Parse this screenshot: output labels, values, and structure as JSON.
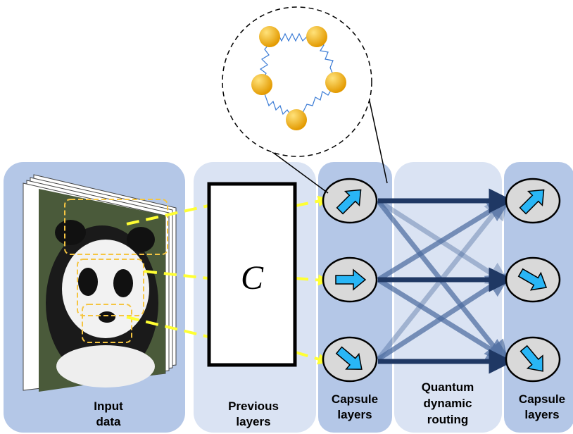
{
  "panels": [
    {
      "label": [
        "Input",
        "data"
      ]
    },
    {
      "label": [
        "Previous",
        "layers"
      ]
    },
    {
      "label": [
        "Capsule",
        "layers"
      ]
    },
    {
      "label": [
        "Quantum",
        "dynamic",
        "routing"
      ]
    },
    {
      "label": [
        "Capsule",
        "layers"
      ]
    }
  ],
  "box_symbol": "C"
}
